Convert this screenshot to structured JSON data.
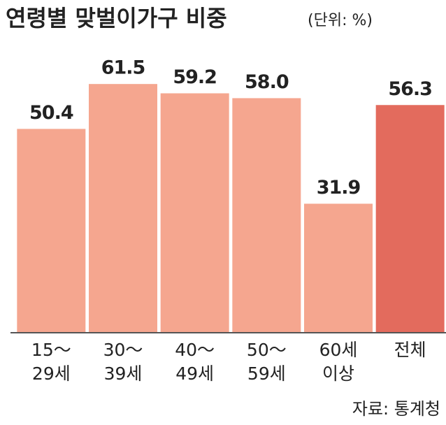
{
  "chart_data": {
    "type": "bar",
    "title": "연령별 맞벌이가구 비중",
    "subtitle": "(단위: %)",
    "categories": [
      [
        "15～",
        "29세"
      ],
      [
        "30～",
        "39세"
      ],
      [
        "40～",
        "49세"
      ],
      [
        "50～",
        "59세"
      ],
      [
        "60세",
        "이상"
      ],
      [
        "전체"
      ]
    ],
    "values": [
      50.4,
      61.5,
      59.2,
      58.0,
      31.9,
      56.3
    ],
    "value_labels": [
      "50.4",
      "61.5",
      "59.2",
      "58.0",
      "31.9",
      "56.3"
    ],
    "colors": [
      "#f5a68f",
      "#f5a68f",
      "#f5a68f",
      "#f5a68f",
      "#f5a68f",
      "#e36b5d"
    ],
    "ylim": [
      0,
      70
    ],
    "source": "자료: 통계청"
  }
}
